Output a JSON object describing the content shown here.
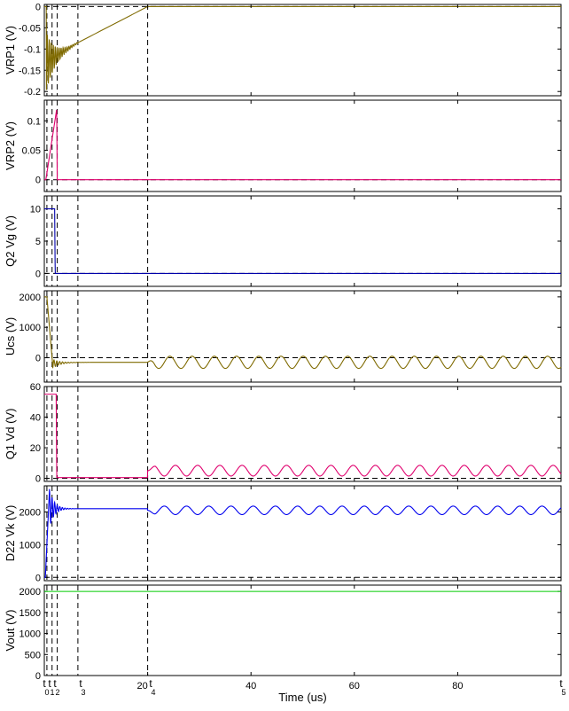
{
  "chart_data": {
    "type": "line",
    "xlabel": "Time (us)",
    "xlim": [
      0,
      100
    ],
    "x_ticks": [
      "20",
      "40",
      "60",
      "80"
    ],
    "time_markers": [
      {
        "label": "t",
        "sub": "0",
        "x": 0.5
      },
      {
        "label": "t",
        "sub": "1",
        "x": 1.5
      },
      {
        "label": "t",
        "sub": "2",
        "x": 2.5
      },
      {
        "label": "t",
        "sub": "3",
        "x": 6.5
      },
      {
        "label": "t",
        "sub": "4",
        "x": 20
      },
      {
        "label": "t",
        "sub": "5",
        "x": 100
      }
    ],
    "panels": [
      {
        "ylabel": "VRP1 (V)",
        "ylim": [
          -0.21,
          0.005
        ],
        "yticks": [
          "0",
          "-0.05",
          "-0.1",
          "-0.15",
          "-0.2"
        ],
        "ytick_values": [
          0,
          -0.05,
          -0.1,
          -0.15,
          -0.2
        ],
        "dash_level": 0,
        "color": "#7f6a00",
        "series": {
          "kind": "vrp1",
          "final": 0
        }
      },
      {
        "ylabel": "VRP2 (V)",
        "ylim": [
          -0.02,
          0.135
        ],
        "yticks": [
          "0.1",
          "0.05",
          "0"
        ],
        "ytick_values": [
          0.1,
          0.05,
          0
        ],
        "dash_level": 0,
        "color": "#e0006e",
        "series": {
          "kind": "vrp2",
          "peak": 0.12,
          "final": 0
        }
      },
      {
        "ylabel": "Q2 Vg (V)",
        "ylim": [
          -2,
          12
        ],
        "yticks": [
          "10",
          "5",
          "0"
        ],
        "ytick_values": [
          10,
          5,
          0
        ],
        "dash_level": 0,
        "color": "#0000aa",
        "series": {
          "kind": "q2vg",
          "high": 10,
          "final": 0
        }
      },
      {
        "ylabel": "Ucs (V)",
        "ylim": [
          -800,
          2200
        ],
        "yticks": [
          "2000",
          "1000",
          "0"
        ],
        "ytick_values": [
          2000,
          1000,
          0
        ],
        "dash_level": 0,
        "color": "#7f6a00",
        "series": {
          "kind": "ucs",
          "start": 2000,
          "settle": -150,
          "osc_amp": 200,
          "osc_period": 4.3
        }
      },
      {
        "ylabel": "Q1 Vd (V)",
        "ylim": [
          -2,
          60
        ],
        "yticks": [
          "60",
          "40",
          "20",
          "0"
        ],
        "ytick_values": [
          60,
          40,
          20,
          0
        ],
        "dash_level": 0,
        "color": "#e0006e",
        "series": {
          "kind": "q1vd",
          "high": 55,
          "osc_mid": 5,
          "osc_amp": 3.5,
          "osc_period": 4.3
        }
      },
      {
        "ylabel": "D22 Vk (V)",
        "ylim": [
          -100,
          2800
        ],
        "yticks": [
          "2000",
          "1000",
          "0"
        ],
        "ytick_values": [
          2000,
          1000,
          0
        ],
        "dash_level": 0,
        "color": "#0000ee",
        "series": {
          "kind": "d22vk",
          "peak": 2700,
          "settle": 2100,
          "osc_amp": 130,
          "osc_period": 4.3
        }
      },
      {
        "ylabel": "Vout (V)",
        "ylim": [
          0,
          2150
        ],
        "yticks": [
          "2000",
          "1500",
          "1000",
          "500",
          "0"
        ],
        "ytick_values": [
          2000,
          1500,
          1000,
          500,
          0
        ],
        "dash_level": null,
        "color": "#00cc00",
        "series": {
          "kind": "vout",
          "level": 2000
        }
      }
    ]
  }
}
